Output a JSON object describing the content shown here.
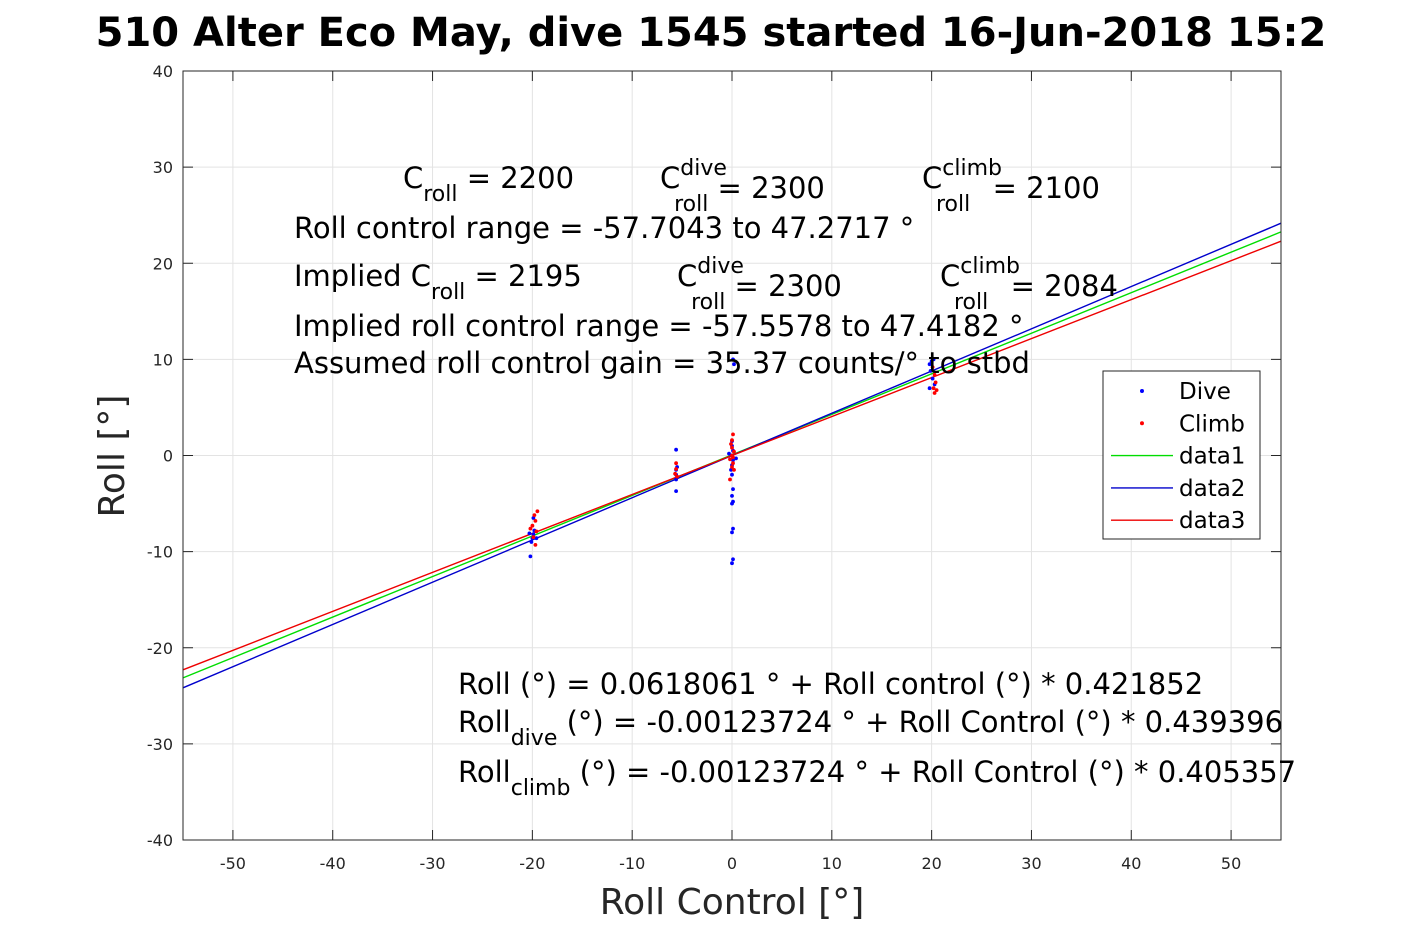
{
  "chart_data": {
    "type": "scatter",
    "title": "510 Alter Eco May, dive 1545 started 16-Jun-2018 15:2",
    "xlabel": "Roll Control [°]",
    "ylabel": "Roll [°]",
    "xlim": [
      -55,
      55
    ],
    "ylim": [
      -40,
      40
    ],
    "xticks": [
      -50,
      -40,
      -30,
      -20,
      -10,
      0,
      10,
      20,
      30,
      40,
      50
    ],
    "yticks": [
      -40,
      -30,
      -20,
      -10,
      0,
      10,
      20,
      30,
      40
    ],
    "grid": true,
    "legend_position": "right",
    "colors": {
      "dive": "#0000ff",
      "climb": "#ff0000",
      "data1": "#00dd00",
      "data2": "#0000cc",
      "data3": "#ee0000"
    },
    "series": [
      {
        "name": "Dive",
        "kind": "points",
        "color": "#0000ff",
        "points": [
          [
            -20.2,
            -10.5
          ],
          [
            -20.1,
            -9.0
          ],
          [
            -20.0,
            -8.6
          ],
          [
            -19.9,
            -8.2
          ],
          [
            -19.8,
            -7.8
          ],
          [
            -19.6,
            -8.6
          ],
          [
            -19.9,
            -6.5
          ],
          [
            -20.3,
            -8.1
          ],
          [
            -5.6,
            0.6
          ],
          [
            -5.6,
            -1.5
          ],
          [
            -5.6,
            -2.0
          ],
          [
            -5.6,
            -2.5
          ],
          [
            -5.6,
            -3.7
          ],
          [
            -5.5,
            -1.2
          ],
          [
            0.1,
            10.0
          ],
          [
            0.2,
            9.5
          ],
          [
            0.0,
            1.5
          ],
          [
            0.0,
            1.0
          ],
          [
            0.1,
            0.5
          ],
          [
            0.0,
            0.0
          ],
          [
            0.1,
            -0.5
          ],
          [
            0.0,
            -1.0
          ],
          [
            -0.1,
            -1.5
          ],
          [
            0.0,
            -2.0
          ],
          [
            0.1,
            -3.5
          ],
          [
            0.0,
            -4.2
          ],
          [
            0.1,
            -4.8
          ],
          [
            0.0,
            -5.0
          ],
          [
            0.1,
            -7.6
          ],
          [
            0.0,
            -8.0
          ],
          [
            0.1,
            -10.8
          ],
          [
            0.0,
            -11.2
          ],
          [
            -0.3,
            0.2
          ],
          [
            0.4,
            -0.3
          ],
          [
            19.8,
            9.5
          ],
          [
            19.9,
            8.8
          ],
          [
            20.0,
            9.8
          ],
          [
            20.1,
            8.0
          ],
          [
            20.3,
            7.4
          ],
          [
            19.8,
            7.0
          ],
          [
            20.2,
            10.0
          ]
        ]
      },
      {
        "name": "Climb",
        "kind": "points",
        "color": "#ff0000",
        "points": [
          [
            -19.5,
            -5.8
          ],
          [
            -19.8,
            -6.2
          ],
          [
            -19.7,
            -6.8
          ],
          [
            -20.0,
            -7.3
          ],
          [
            -19.6,
            -7.9
          ],
          [
            -19.9,
            -8.5
          ],
          [
            -19.7,
            -9.3
          ],
          [
            -20.2,
            -7.6
          ],
          [
            -5.6,
            -0.8
          ],
          [
            -5.6,
            -1.4
          ],
          [
            -5.5,
            -2.2
          ],
          [
            -5.7,
            -1.9
          ],
          [
            0.1,
            2.2
          ],
          [
            0.0,
            1.6
          ],
          [
            -0.1,
            1.2
          ],
          [
            0.0,
            0.8
          ],
          [
            0.2,
            0.4
          ],
          [
            0.0,
            0.0
          ],
          [
            -0.2,
            -0.4
          ],
          [
            0.1,
            -0.8
          ],
          [
            0.0,
            -1.2
          ],
          [
            0.2,
            -1.5
          ],
          [
            -0.2,
            -2.5
          ],
          [
            0.1,
            -0.2
          ],
          [
            20.1,
            9.2
          ],
          [
            20.3,
            8.4
          ],
          [
            20.4,
            7.6
          ],
          [
            20.2,
            7.0
          ],
          [
            20.3,
            6.5
          ],
          [
            20.5,
            6.8
          ]
        ]
      },
      {
        "name": "data1",
        "kind": "line",
        "color": "#00dd00",
        "x": [
          -55,
          55
        ],
        "y": [
          -23.1399,
          23.2636
        ]
      },
      {
        "name": "data2",
        "kind": "line",
        "color": "#0000cc",
        "x": [
          -55,
          55
        ],
        "y": [
          -24.168,
          24.1656
        ]
      },
      {
        "name": "data3",
        "kind": "line",
        "color": "#ee0000",
        "x": [
          -55,
          55
        ],
        "y": [
          -22.2959,
          22.2934
        ]
      }
    ],
    "annotations": [
      {
        "parts": [
          [
            "C",
            ""
          ],
          [
            "roll",
            "sub"
          ],
          [
            " = 2200",
            ""
          ]
        ]
      },
      {
        "parts": [
          [
            "C",
            ""
          ],
          [
            "dive",
            "sup"
          ],
          [
            "roll",
            "sub"
          ],
          [
            " = 2300",
            ""
          ]
        ]
      },
      {
        "parts": [
          [
            "C",
            ""
          ],
          [
            "climb",
            "sup"
          ],
          [
            "roll",
            "sub"
          ],
          [
            " = 2100",
            ""
          ]
        ]
      },
      {
        "parts": [
          [
            "Roll control range = -57.7043 to 47.2717 °",
            ""
          ]
        ]
      },
      {
        "parts": [
          [
            "Implied C",
            ""
          ],
          [
            "roll",
            "sub"
          ],
          [
            " = 2195",
            ""
          ]
        ]
      },
      {
        "parts": [
          [
            "C",
            ""
          ],
          [
            "dive",
            "sup"
          ],
          [
            "roll",
            "sub"
          ],
          [
            " = 2300",
            ""
          ]
        ]
      },
      {
        "parts": [
          [
            "C",
            ""
          ],
          [
            "climb",
            "sup"
          ],
          [
            "roll",
            "sub"
          ],
          [
            " = 2084",
            ""
          ]
        ]
      },
      {
        "parts": [
          [
            "Implied roll control range = -57.5578 to 47.4182 °",
            ""
          ]
        ]
      },
      {
        "parts": [
          [
            "Assumed roll control gain = 35.37 counts/° to stbd",
            ""
          ]
        ]
      },
      {
        "parts": [
          [
            "Roll (°) = 0.0618061 ° + Roll control (°) * 0.421852",
            ""
          ]
        ]
      },
      {
        "parts": [
          [
            "Roll",
            ""
          ],
          [
            "dive",
            "sub"
          ],
          [
            " (°) = -0.00123724 ° + Roll Control (°) * 0.439396",
            ""
          ]
        ]
      },
      {
        "parts": [
          [
            "Roll",
            ""
          ],
          [
            "climb",
            "sub"
          ],
          [
            " (°) = -0.00123724 ° + Roll Control (°) * 0.405357",
            ""
          ]
        ]
      }
    ]
  }
}
